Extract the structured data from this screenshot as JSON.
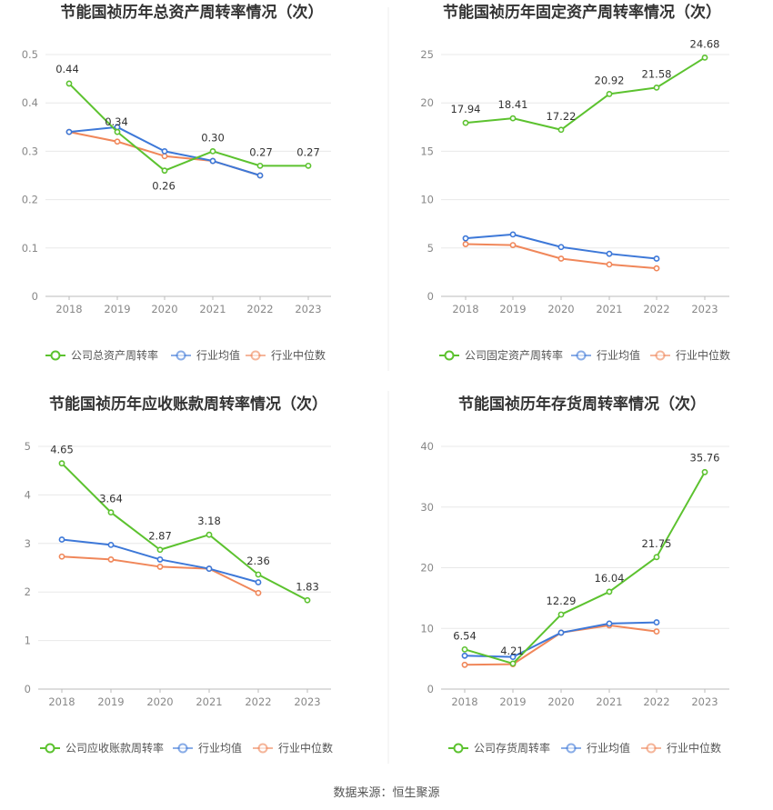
{
  "source": "数据来源：恒生聚源",
  "colors": {
    "company": "#5cc22f",
    "avg": "#3d78d8",
    "median": "#f0875a"
  },
  "legend_common": {
    "avg": "行业均值",
    "median": "行业中位数"
  },
  "chart_data": [
    {
      "type": "line",
      "title": "节能国祯历年总资产周转率情况（次）",
      "categories": [
        "2018",
        "2019",
        "2020",
        "2021",
        "2022",
        "2023"
      ],
      "ylim": [
        0,
        0.5
      ],
      "yticks": [
        "0",
        "0.1",
        "0.2",
        "0.3",
        "0.4",
        "0.5"
      ],
      "legend_position": "bottom",
      "series": [
        {
          "name": "公司总资产周转率",
          "key": "company",
          "values": [
            0.44,
            0.34,
            0.26,
            0.3,
            0.27,
            0.27
          ],
          "labels": [
            "0.44",
            "0.34",
            "0.26",
            "0.30",
            "0.27",
            "0.27"
          ]
        },
        {
          "name": "行业均值",
          "key": "avg",
          "values": [
            0.34,
            0.35,
            0.3,
            0.28,
            0.25,
            null
          ]
        },
        {
          "name": "行业中位数",
          "key": "median",
          "values": [
            0.34,
            0.32,
            0.29,
            0.28,
            0.25,
            null
          ]
        }
      ]
    },
    {
      "type": "line",
      "title": "节能国祯历年固定资产周转率情况（次）",
      "categories": [
        "2018",
        "2019",
        "2020",
        "2021",
        "2022",
        "2023"
      ],
      "ylim": [
        0,
        25
      ],
      "yticks": [
        "0",
        "5",
        "10",
        "15",
        "20",
        "25"
      ],
      "legend_position": "bottom",
      "series": [
        {
          "name": "公司固定资产周转率",
          "key": "company",
          "values": [
            17.94,
            18.41,
            17.22,
            20.92,
            21.58,
            24.68
          ],
          "labels": [
            "17.94",
            "18.41",
            "17.22",
            "20.92",
            "21.58",
            "24.68"
          ]
        },
        {
          "name": "行业均值",
          "key": "avg",
          "values": [
            6.0,
            6.4,
            5.1,
            4.4,
            3.9,
            null
          ]
        },
        {
          "name": "行业中位数",
          "key": "median",
          "values": [
            5.4,
            5.3,
            3.9,
            3.3,
            2.9,
            null
          ]
        }
      ]
    },
    {
      "type": "line",
      "title": "节能国祯历年应收账款周转率情况（次）",
      "categories": [
        "2018",
        "2019",
        "2020",
        "2021",
        "2022",
        "2023"
      ],
      "ylim": [
        0,
        5
      ],
      "yticks": [
        "0",
        "1",
        "2",
        "3",
        "4",
        "5"
      ],
      "legend_position": "bottom",
      "series": [
        {
          "name": "公司应收账款周转率",
          "key": "company",
          "values": [
            4.65,
            3.64,
            2.87,
            3.18,
            2.36,
            1.83
          ],
          "labels": [
            "4.65",
            "3.64",
            "2.87",
            "3.18",
            "2.36",
            "1.83"
          ]
        },
        {
          "name": "行业均值",
          "key": "avg",
          "values": [
            3.08,
            2.97,
            2.67,
            2.48,
            2.2,
            null
          ]
        },
        {
          "name": "行业中位数",
          "key": "median",
          "values": [
            2.73,
            2.67,
            2.52,
            2.48,
            1.98,
            null
          ]
        }
      ]
    },
    {
      "type": "line",
      "title": "节能国祯历年存货周转率情况（次）",
      "categories": [
        "2018",
        "2019",
        "2020",
        "2021",
        "2022",
        "2023"
      ],
      "ylim": [
        0,
        40
      ],
      "yticks": [
        "0",
        "10",
        "20",
        "30",
        "40"
      ],
      "legend_position": "bottom",
      "series": [
        {
          "name": "公司存货周转率",
          "key": "company",
          "values": [
            6.54,
            4.21,
            12.29,
            16.04,
            21.75,
            35.76
          ],
          "labels": [
            "6.54",
            "4.21",
            "12.29",
            "16.04",
            "21.75",
            "35.76"
          ]
        },
        {
          "name": "行业均值",
          "key": "avg",
          "values": [
            5.5,
            5.3,
            9.3,
            10.8,
            11.0,
            null
          ]
        },
        {
          "name": "行业中位数",
          "key": "median",
          "values": [
            4.0,
            4.1,
            9.3,
            10.5,
            9.5,
            null
          ]
        }
      ]
    }
  ]
}
